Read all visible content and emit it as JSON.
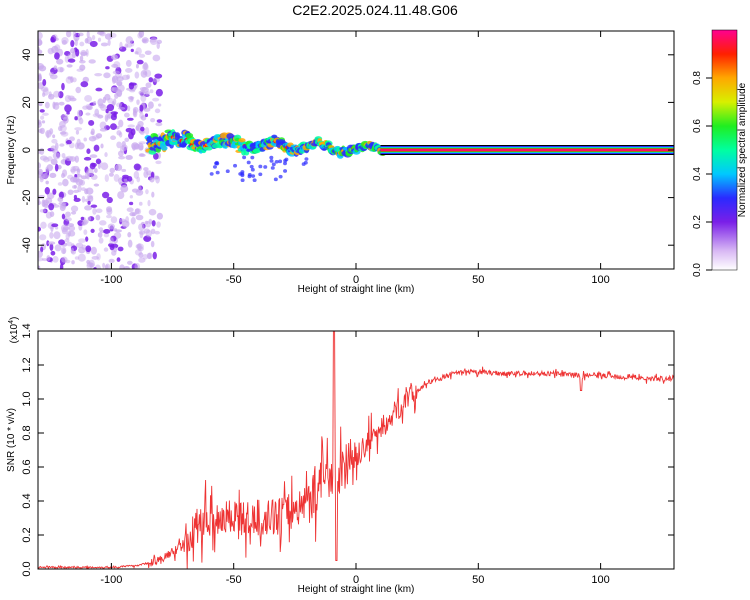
{
  "title": "C2E2.2025.024.11.48.G06",
  "chart_data": [
    {
      "type": "heatmap",
      "xlabel": "Height of straight line (km)",
      "ylabel": "Frequency (Hz)",
      "xlim": [
        -130,
        130
      ],
      "ylim": [
        -50,
        50
      ],
      "xticks": [
        "-100",
        "-50",
        "0",
        "50",
        "100"
      ],
      "yticks": [
        "-40",
        "-20",
        "0",
        "20",
        "40"
      ],
      "colorbar": {
        "label": "Normalized spectral amplitude",
        "range": [
          0,
          1
        ],
        "ticks": [
          "0.0",
          "0.2",
          "0.4",
          "0.6",
          "0.8"
        ]
      },
      "regions": [
        {
          "name": "scattered-noise",
          "x_range": [
            -130,
            -80
          ],
          "freq_range": [
            -50,
            50
          ],
          "amplitude": 0.1
        },
        {
          "name": "wandering-line",
          "x_range": [
            -85,
            10
          ],
          "freq_center": [
            5,
            1,
            -1,
            0
          ],
          "amplitude": 0.6
        },
        {
          "name": "steady-line",
          "x_range": [
            10,
            130
          ],
          "freq_center": 0,
          "amplitude": 0.95
        }
      ]
    },
    {
      "type": "line",
      "xlabel": "Height of straight line (km)",
      "ylabel": "SNR (10 * v/v)",
      "scale_label": "(x10",
      "scale_exp": "4",
      "scale_close": ")",
      "xlim": [
        -130,
        130
      ],
      "ylim": [
        0,
        1.4
      ],
      "xticks": [
        "-100",
        "-50",
        "0",
        "50",
        "100"
      ],
      "yticks": [
        "0.0",
        "0.2",
        "0.4",
        "0.6",
        "0.8",
        "1.0",
        "1.2",
        "1.4"
      ],
      "series": [
        {
          "name": "SNR",
          "color": "#ee3333",
          "x": [
            -130,
            -100,
            -90,
            -80,
            -75,
            -70,
            -65,
            -60,
            -55,
            -50,
            -45,
            -40,
            -35,
            -30,
            -25,
            -20,
            -15,
            -10,
            -5,
            0,
            5,
            10,
            15,
            20,
            30,
            40,
            50,
            60,
            70,
            80,
            90,
            100,
            110,
            120,
            130
          ],
          "y": [
            0.01,
            0.01,
            0.02,
            0.05,
            0.1,
            0.15,
            0.25,
            0.3,
            0.3,
            0.32,
            0.28,
            0.3,
            0.3,
            0.32,
            0.35,
            0.4,
            0.5,
            0.58,
            0.6,
            0.65,
            0.75,
            0.82,
            0.9,
            1.0,
            1.1,
            1.15,
            1.16,
            1.15,
            1.15,
            1.15,
            1.14,
            1.14,
            1.13,
            1.12,
            1.12
          ]
        }
      ]
    }
  ]
}
